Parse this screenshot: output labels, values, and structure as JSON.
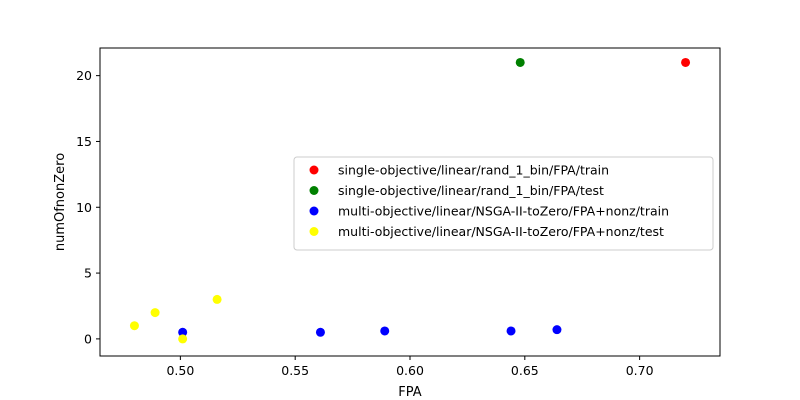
{
  "chart_data": {
    "type": "scatter",
    "xlabel": "FPA",
    "ylabel": "numOfnonZero",
    "xlim": [
      0.465,
      0.735
    ],
    "ylim": [
      -1.3,
      22.1
    ],
    "xticks": [
      {
        "value": 0.5,
        "label": "0.50"
      },
      {
        "value": 0.55,
        "label": "0.55"
      },
      {
        "value": 0.6,
        "label": "0.60"
      },
      {
        "value": 0.65,
        "label": "0.65"
      },
      {
        "value": 0.7,
        "label": "0.70"
      }
    ],
    "yticks": [
      {
        "value": 0,
        "label": "0"
      },
      {
        "value": 5,
        "label": "5"
      },
      {
        "value": 10,
        "label": "10"
      },
      {
        "value": 15,
        "label": "15"
      },
      {
        "value": 20,
        "label": "20"
      }
    ],
    "grid": false,
    "legend_position": "center-right",
    "series": [
      {
        "name": "single-objective/linear/rand_1_bin/FPA/train",
        "color": "#ff0000",
        "points": [
          {
            "x": 0.72,
            "y": 21
          }
        ]
      },
      {
        "name": "single-objective/linear/rand_1_bin/FPA/test",
        "color": "#008000",
        "points": [
          {
            "x": 0.648,
            "y": 21
          }
        ]
      },
      {
        "name": "multi-objective/linear/NSGA-II-toZero/FPA+nonz/train",
        "color": "#0000ff",
        "points": [
          {
            "x": 0.501,
            "y": 0.5
          },
          {
            "x": 0.561,
            "y": 0.5
          },
          {
            "x": 0.589,
            "y": 0.6
          },
          {
            "x": 0.644,
            "y": 0.6
          },
          {
            "x": 0.664,
            "y": 0.7
          }
        ]
      },
      {
        "name": "multi-objective/linear/NSGA-II-toZero/FPA+nonz/test",
        "color": "#ffff00",
        "points": [
          {
            "x": 0.48,
            "y": 1
          },
          {
            "x": 0.489,
            "y": 2
          },
          {
            "x": 0.501,
            "y": 0
          },
          {
            "x": 0.516,
            "y": 3
          }
        ]
      }
    ]
  }
}
